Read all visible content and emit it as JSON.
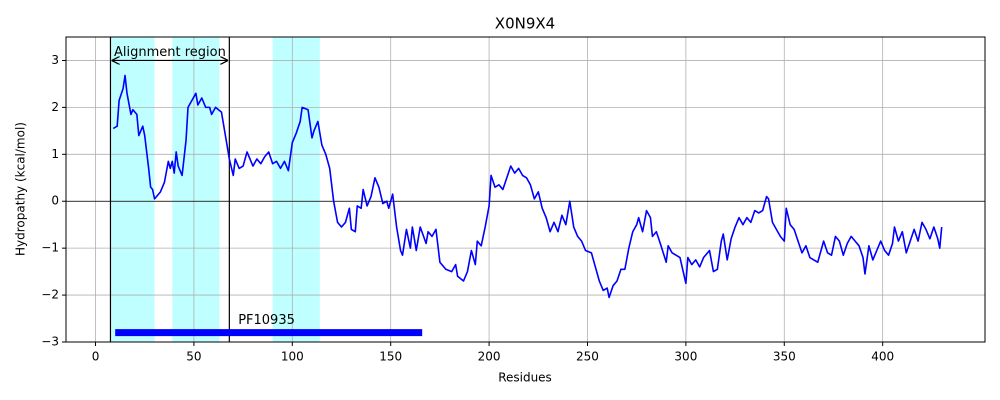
{
  "chart_data": {
    "type": "line",
    "title": "X0N9X4",
    "x_label": "Residues",
    "y_label": "Hydropathy (kcal/mol)",
    "x": [
      9,
      11,
      12,
      14,
      15,
      16,
      18,
      19,
      21,
      22,
      24,
      25,
      27,
      28,
      29,
      30,
      33,
      35,
      37,
      38,
      39,
      40,
      41,
      42,
      44,
      46,
      47,
      49,
      51,
      52,
      54,
      56,
      58,
      59,
      61,
      64,
      66,
      68,
      70,
      71,
      73,
      75,
      77,
      80,
      82,
      84,
      86,
      88,
      90,
      92,
      94,
      96,
      98,
      100,
      102,
      104,
      105,
      108,
      110,
      111,
      113,
      115,
      117,
      119,
      121,
      123,
      125,
      127,
      129,
      130,
      132,
      133,
      135,
      136,
      138,
      140,
      142,
      144,
      146,
      148,
      149,
      151,
      153,
      155,
      156,
      158,
      160,
      161,
      163,
      165,
      168,
      169,
      171,
      173,
      175,
      178,
      181,
      183,
      184,
      187,
      189,
      191,
      193,
      194,
      196,
      198,
      200,
      201,
      203,
      205,
      207,
      209,
      211,
      213,
      215,
      217,
      219,
      221,
      223,
      225,
      227,
      229,
      231,
      233,
      235,
      237,
      239,
      241,
      243,
      245,
      247,
      249,
      252,
      254,
      256,
      258,
      260,
      261,
      263,
      265,
      267,
      269,
      271,
      273,
      275,
      276,
      278,
      280,
      282,
      283,
      285,
      287,
      290,
      291,
      293,
      295,
      297,
      300,
      301,
      303,
      305,
      307,
      309,
      312,
      314,
      316,
      318,
      319,
      321,
      323,
      325,
      327,
      329,
      331,
      333,
      335,
      337,
      339,
      341,
      342,
      344,
      346,
      348,
      350,
      351,
      353,
      355,
      357,
      359,
      361,
      363,
      365,
      367,
      370,
      372,
      374,
      376,
      378,
      380,
      382,
      384,
      386,
      388,
      390,
      391,
      393,
      395,
      397,
      399,
      401,
      403,
      405,
      406,
      408,
      410,
      412,
      414,
      416,
      418,
      420,
      422,
      424,
      426,
      428,
      429,
      430
    ],
    "values": [
      1.55,
      1.6,
      2.15,
      2.4,
      2.68,
      2.3,
      1.85,
      1.95,
      1.85,
      1.4,
      1.6,
      1.4,
      0.7,
      0.3,
      0.25,
      0.05,
      0.2,
      0.4,
      0.85,
      0.7,
      0.85,
      0.6,
      1.05,
      0.75,
      0.55,
      1.3,
      2.0,
      2.15,
      2.3,
      2.05,
      2.2,
      2.0,
      2.0,
      1.85,
      2.0,
      1.9,
      1.4,
      0.9,
      0.55,
      0.9,
      0.7,
      0.75,
      1.05,
      0.75,
      0.9,
      0.8,
      0.95,
      1.05,
      0.8,
      0.85,
      0.7,
      0.85,
      0.65,
      1.25,
      1.45,
      1.7,
      2.0,
      1.95,
      1.35,
      1.5,
      1.7,
      1.2,
      1.0,
      0.7,
      0.0,
      -0.45,
      -0.55,
      -0.45,
      -0.15,
      -0.6,
      -0.65,
      -0.1,
      -0.15,
      0.25,
      -0.1,
      0.1,
      0.5,
      0.3,
      -0.05,
      0.0,
      -0.15,
      0.15,
      -0.55,
      -1.05,
      -1.15,
      -0.6,
      -1.0,
      -0.55,
      -1.05,
      -0.55,
      -0.9,
      -0.65,
      -0.75,
      -0.6,
      -1.3,
      -1.45,
      -1.5,
      -1.35,
      -1.6,
      -1.7,
      -1.5,
      -1.05,
      -1.35,
      -0.85,
      -0.95,
      -0.55,
      -0.1,
      0.55,
      0.3,
      0.35,
      0.25,
      0.5,
      0.75,
      0.6,
      0.7,
      0.55,
      0.5,
      0.35,
      0.05,
      0.2,
      -0.15,
      -0.35,
      -0.65,
      -0.45,
      -0.65,
      -0.3,
      -0.5,
      0.0,
      -0.55,
      -0.75,
      -0.85,
      -1.05,
      -1.1,
      -1.4,
      -1.7,
      -1.9,
      -1.85,
      -2.05,
      -1.8,
      -1.7,
      -1.45,
      -1.45,
      -1.0,
      -0.65,
      -0.5,
      -0.35,
      -0.65,
      -0.2,
      -0.35,
      -0.75,
      -0.65,
      -0.9,
      -1.3,
      -0.95,
      -1.1,
      -1.15,
      -1.2,
      -1.75,
      -1.2,
      -1.35,
      -1.25,
      -1.4,
      -1.2,
      -1.05,
      -1.5,
      -1.45,
      -0.85,
      -0.7,
      -1.25,
      -0.8,
      -0.55,
      -0.35,
      -0.5,
      -0.35,
      -0.45,
      -0.2,
      -0.25,
      -0.2,
      0.1,
      0.05,
      -0.45,
      -0.6,
      -0.75,
      -0.85,
      -0.15,
      -0.5,
      -0.6,
      -0.85,
      -1.1,
      -0.95,
      -1.2,
      -1.25,
      -1.3,
      -0.85,
      -1.1,
      -1.15,
      -0.75,
      -0.85,
      -1.15,
      -0.9,
      -0.75,
      -0.85,
      -0.95,
      -1.2,
      -1.55,
      -0.95,
      -1.25,
      -1.05,
      -0.85,
      -1.05,
      -1.15,
      -0.9,
      -0.55,
      -0.85,
      -0.65,
      -1.1,
      -0.85,
      -0.6,
      -0.85,
      -0.45,
      -0.6,
      -0.8,
      -0.55,
      -0.8,
      -1.0,
      -0.55
    ],
    "color": "#0000ff",
    "xlim": [
      -15,
      452
    ],
    "ylim": [
      -3,
      3.5
    ],
    "xticks": [
      0,
      50,
      100,
      150,
      200,
      250,
      300,
      350,
      400
    ],
    "yticks": [
      {
        "value": -3,
        "label": "−3"
      },
      {
        "value": -2,
        "label": "−2"
      },
      {
        "value": -1,
        "label": "−1"
      },
      0,
      1,
      2,
      3
    ],
    "grid": true,
    "hline": 0,
    "spans": [
      [
        8,
        30
      ],
      [
        39,
        63
      ],
      [
        90,
        114
      ]
    ],
    "span_color": "#c0ffff",
    "vlines": [
      7.6,
      68
    ],
    "annotation": {
      "text": "Alignment region",
      "y": 3
    },
    "domain": {
      "label": "PF10935",
      "start": 10,
      "end": 166,
      "y": -2.8,
      "color": "#0000ff"
    }
  }
}
